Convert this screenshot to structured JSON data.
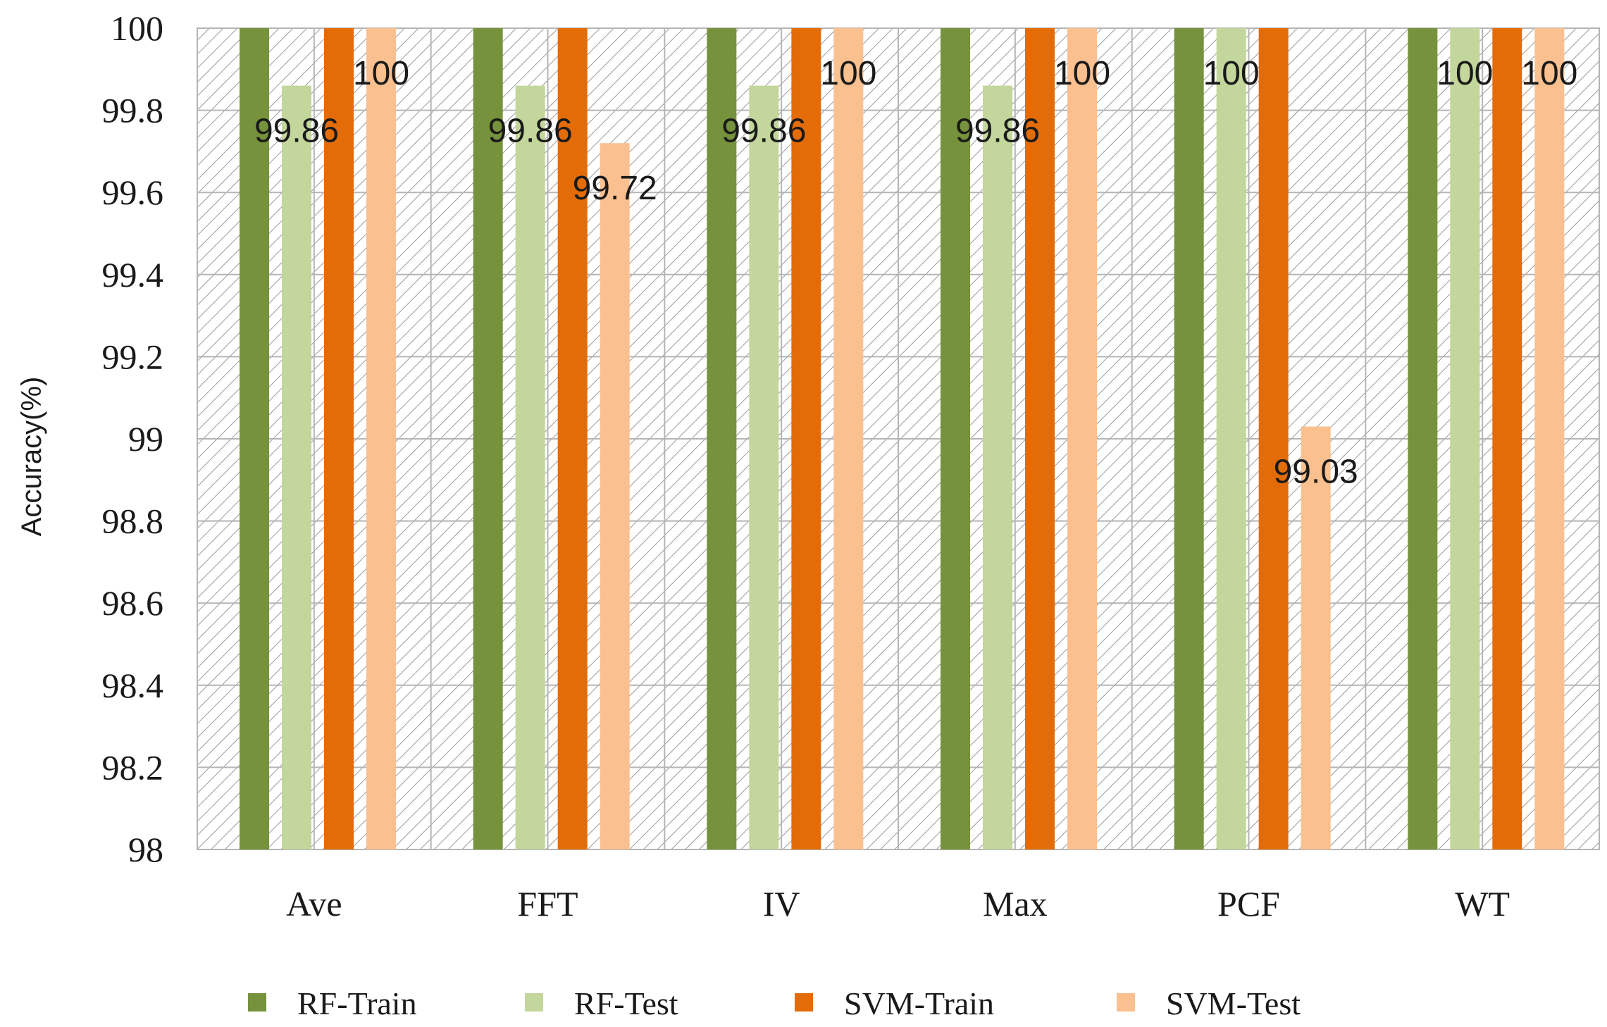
{
  "chart_data": {
    "type": "bar",
    "title": "",
    "xlabel": "",
    "ylabel": "Accuracy(%)",
    "ylim": [
      98,
      100
    ],
    "yticks": [
      98,
      98.2,
      98.4,
      98.6,
      98.8,
      99,
      99.2,
      99.4,
      99.6,
      99.8,
      100
    ],
    "ytick_labels": [
      "98",
      "98.2",
      "98.4",
      "98.6",
      "98.8",
      "99",
      "99.2",
      "99.4",
      "99.6",
      "99.8",
      "100"
    ],
    "categories": [
      "Ave",
      "FFT",
      "IV",
      "Max",
      "PCF",
      "WT"
    ],
    "grid": "hatched-cells",
    "legend_position": "bottom",
    "series": [
      {
        "name": "RF-Train",
        "color": "#76923c",
        "values": [
          100,
          100,
          100,
          100,
          100,
          100
        ],
        "labels": [
          "",
          "",
          "",
          "",
          "",
          ""
        ]
      },
      {
        "name": "RF-Test",
        "color": "#c3d69b",
        "values": [
          99.86,
          99.86,
          99.86,
          99.86,
          100,
          100
        ],
        "labels": [
          "99.86",
          "99.86",
          "99.86",
          "99.86",
          "100",
          "100"
        ]
      },
      {
        "name": "SVM-Train",
        "color": "#e36c09",
        "values": [
          100,
          100,
          100,
          100,
          100,
          100
        ],
        "labels": [
          "",
          "",
          "",
          "",
          "",
          ""
        ]
      },
      {
        "name": "SVM-Test",
        "color": "#fac090",
        "values": [
          100,
          99.72,
          100,
          100,
          99.03,
          100
        ],
        "labels": [
          "100",
          "99.72",
          "100",
          "100",
          "99.03",
          "100"
        ]
      }
    ]
  }
}
